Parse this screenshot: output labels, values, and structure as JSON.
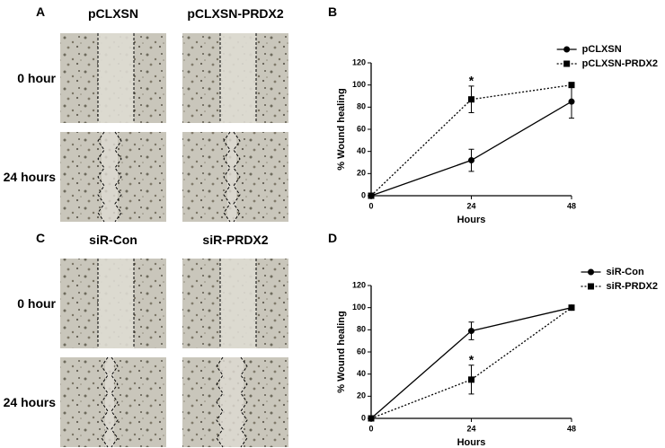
{
  "panels": [
    {
      "letter": "A",
      "columns": [
        "pCLXSN",
        "pCLXSN-PRDX2"
      ],
      "rows": [
        "0 hour",
        "24 hours"
      ]
    },
    {
      "letter": "C",
      "columns": [
        "siR-Con",
        "siR-PRDX2"
      ],
      "rows": [
        "0 hour",
        "24 hours"
      ]
    }
  ],
  "chart_data": [
    {
      "type": "line",
      "panel": "B",
      "xlabel": "Hours",
      "ylabel": "% Wound healing",
      "x": [
        0,
        24,
        48
      ],
      "xlim": [
        0,
        48
      ],
      "xticks": [
        0,
        24,
        48
      ],
      "ylim": [
        0,
        120
      ],
      "yticks": [
        0,
        20,
        40,
        60,
        80,
        100,
        120
      ],
      "legend": "upper right",
      "series": [
        {
          "name": "pCLXSN",
          "color": "#000000",
          "marker": "circle",
          "linestyle": "solid",
          "values": [
            0,
            32,
            85
          ],
          "errors": [
            0,
            10,
            15
          ]
        },
        {
          "name": "pCLXSN-PRDX2",
          "color": "#000000",
          "marker": "square",
          "linestyle": "dotted",
          "values": [
            0,
            87,
            100
          ],
          "errors": [
            0,
            12,
            0
          ]
        }
      ],
      "annotations": [
        {
          "text": "*",
          "x": 24,
          "y": 104
        }
      ]
    },
    {
      "type": "line",
      "panel": "D",
      "xlabel": "Hours",
      "ylabel": "% Wound healing",
      "x": [
        0,
        24,
        48
      ],
      "xlim": [
        0,
        48
      ],
      "xticks": [
        0,
        24,
        48
      ],
      "ylim": [
        0,
        120
      ],
      "yticks": [
        0,
        20,
        40,
        60,
        80,
        100,
        120
      ],
      "legend": "upper right",
      "series": [
        {
          "name": "siR-Con",
          "color": "#000000",
          "marker": "circle",
          "linestyle": "solid",
          "values": [
            0,
            79,
            100
          ],
          "errors": [
            0,
            8,
            0
          ]
        },
        {
          "name": "siR-PRDX2",
          "color": "#000000",
          "marker": "square",
          "linestyle": "dotted",
          "values": [
            0,
            35,
            100
          ],
          "errors": [
            0,
            13,
            0
          ]
        }
      ],
      "annotations": [
        {
          "text": "*",
          "x": 24,
          "y": 53
        }
      ]
    }
  ]
}
